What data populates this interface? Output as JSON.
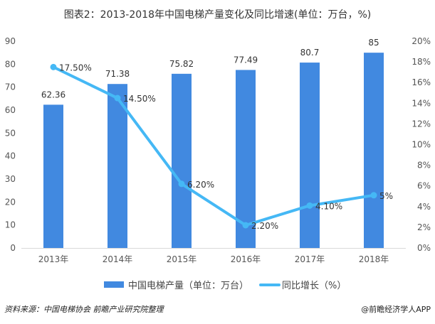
{
  "chart_data": {
    "type": "bar+line",
    "title": "图表2：2013-2018年中国电梯产量变化及同比增速(单位：万台，%)",
    "categories": [
      "2013年",
      "2014年",
      "2015年",
      "2016年",
      "2017年",
      "2018年"
    ],
    "series": [
      {
        "name": "中国电梯产量（单位：万台）",
        "type": "bar",
        "axis": "left",
        "color": "#4189E0",
        "values": [
          62.36,
          71.38,
          75.82,
          77.49,
          80.7,
          85
        ],
        "labels": [
          "62.36",
          "71.38",
          "75.82",
          "77.49",
          "80.7",
          "85"
        ]
      },
      {
        "name": "同比增长（%）",
        "type": "line",
        "axis": "right",
        "color": "#45B8F5",
        "values": [
          17.5,
          14.5,
          6.2,
          2.2,
          4.1,
          5.1
        ],
        "labels": [
          "17.50%",
          "14.50%",
          "6.20%",
          "2.20%",
          "4.10%",
          "5%"
        ]
      }
    ],
    "left_axis": {
      "ylim": [
        0,
        90
      ],
      "ticks": [
        "0",
        "10",
        "20",
        "30",
        "40",
        "50",
        "60",
        "70",
        "80",
        "90"
      ]
    },
    "right_axis": {
      "ylim": [
        0,
        20
      ],
      "ticks": [
        "0%",
        "2%",
        "4%",
        "6%",
        "8%",
        "10%",
        "12%",
        "14%",
        "16%",
        "18%",
        "20%"
      ]
    },
    "legend_position": "bottom",
    "grid": false
  },
  "footer": {
    "source": "资料来源：中国电梯协会 前瞻产业研究院整理",
    "credit": "@前瞻经济学人APP"
  }
}
